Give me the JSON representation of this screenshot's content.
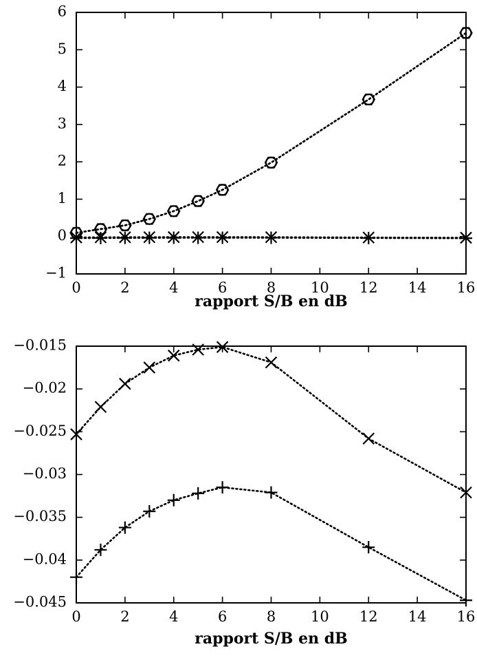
{
  "chart_data": [
    {
      "type": "line",
      "xlabel": "rapport S/B en dB",
      "ylabel": "",
      "xlim": [
        0,
        16
      ],
      "ylim": [
        -1,
        6
      ],
      "xticks": [
        "0",
        "2",
        "4",
        "6",
        "8",
        "10",
        "12",
        "14",
        "16"
      ],
      "yticks": [
        "−1",
        "0",
        "1",
        "2",
        "3",
        "4",
        "5",
        "6"
      ],
      "grid": false,
      "series": [
        {
          "marker": "circle",
          "x": [
            0,
            1,
            2,
            3,
            4,
            5,
            6,
            8,
            12,
            16
          ],
          "y": [
            0.1,
            0.2,
            0.3,
            0.47,
            0.68,
            0.95,
            1.25,
            1.98,
            3.67,
            5.45
          ]
        },
        {
          "marker": "hexagon",
          "x": [
            0,
            1,
            2,
            3,
            4,
            5,
            6,
            8,
            12,
            16
          ],
          "y": [
            0.1,
            0.2,
            0.3,
            0.47,
            0.68,
            0.95,
            1.25,
            1.98,
            3.67,
            5.45
          ]
        },
        {
          "marker": "x",
          "x": [
            0,
            1,
            2,
            3,
            4,
            5,
            6,
            8,
            12,
            16
          ],
          "y": [
            -0.025,
            -0.022,
            -0.019,
            -0.017,
            -0.016,
            -0.015,
            -0.015,
            -0.017,
            -0.026,
            -0.032
          ]
        },
        {
          "marker": "plus",
          "x": [
            0,
            1,
            2,
            3,
            4,
            5,
            6,
            8,
            12,
            16
          ],
          "y": [
            -0.042,
            -0.039,
            -0.036,
            -0.034,
            -0.033,
            -0.032,
            -0.032,
            -0.032,
            -0.039,
            -0.045
          ]
        }
      ]
    },
    {
      "type": "line",
      "xlabel": "rapport S/B en dB",
      "ylabel": "",
      "xlim": [
        0,
        16
      ],
      "ylim": [
        -0.045,
        -0.015
      ],
      "xticks": [
        "0",
        "2",
        "4",
        "6",
        "8",
        "10",
        "12",
        "14",
        "16"
      ],
      "yticks": [
        "−0.045",
        "−0.04",
        "−0.035",
        "−0.03",
        "−0.025",
        "−0.02",
        "−0.015"
      ],
      "grid": false,
      "series": [
        {
          "marker": "x",
          "x": [
            0,
            1,
            2,
            3,
            4,
            5,
            6,
            8,
            12,
            16
          ],
          "y": [
            -0.0253,
            -0.0221,
            -0.0194,
            -0.0175,
            -0.0161,
            -0.0154,
            -0.0151,
            -0.0169,
            -0.0258,
            -0.0321
          ]
        },
        {
          "marker": "plus",
          "x": [
            0,
            1,
            2,
            3,
            4,
            5,
            6,
            8,
            12,
            16
          ],
          "y": [
            -0.042,
            -0.0388,
            -0.0362,
            -0.0343,
            -0.033,
            -0.0322,
            -0.0315,
            -0.0321,
            -0.0385,
            -0.0447
          ]
        }
      ]
    }
  ]
}
